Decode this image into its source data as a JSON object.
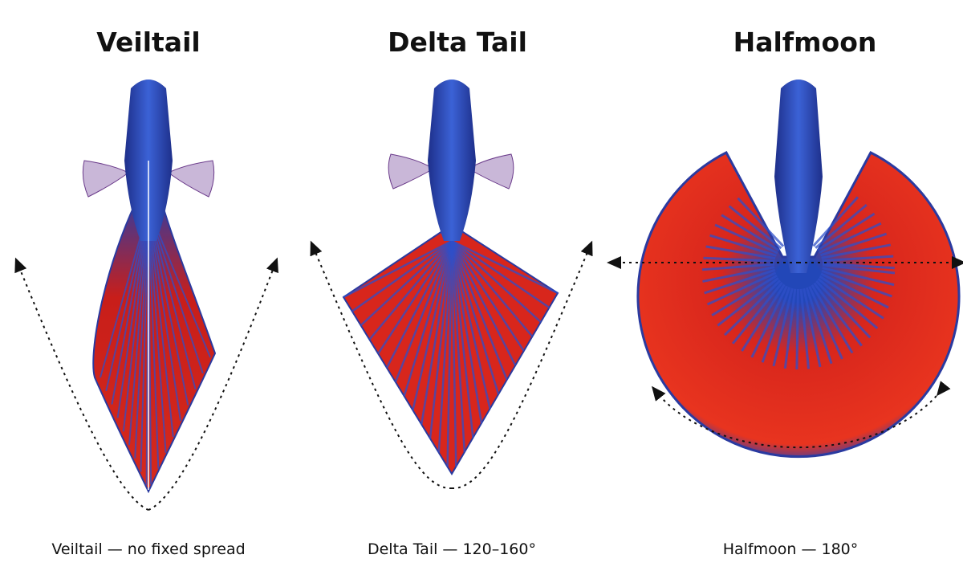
{
  "panels": [
    {
      "title": "Veiltail",
      "caption": "Veiltail — no fixed spread"
    },
    {
      "title": "Delta Tail",
      "caption": "Delta Tail — 120–160°"
    },
    {
      "title": "Halfmoon",
      "caption": "Halfmoon — 180°"
    }
  ]
}
